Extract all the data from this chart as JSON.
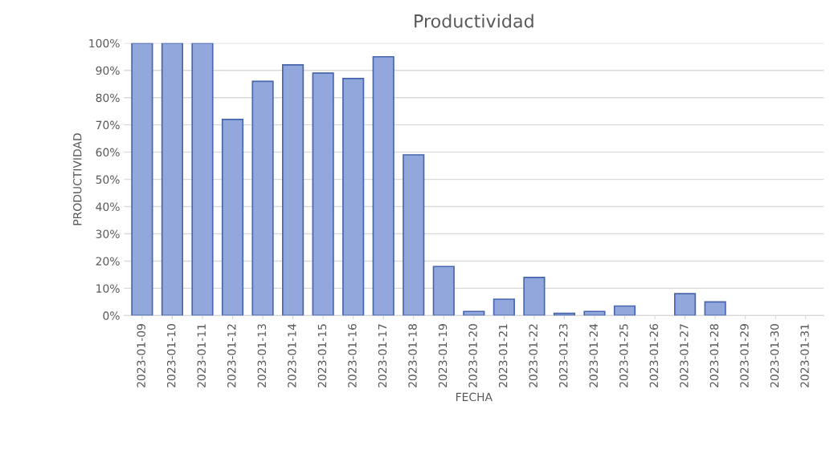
{
  "chart_data": {
    "type": "bar",
    "title": "Productividad",
    "xlabel": "FECHA",
    "ylabel": "PRODUCTIVIDAD",
    "categories": [
      "2023-01-09",
      "2023-01-10",
      "2023-01-11",
      "2023-01-12",
      "2023-01-13",
      "2023-01-14",
      "2023-01-15",
      "2023-01-16",
      "2023-01-17",
      "2023-01-18",
      "2023-01-19",
      "2023-01-20",
      "2023-01-21",
      "2023-01-22",
      "2023-01-23",
      "2023-01-24",
      "2023-01-25",
      "2023-01-26",
      "2023-01-27",
      "2023-01-28",
      "2023-01-29",
      "2023-01-30",
      "2023-01-31"
    ],
    "values": [
      100,
      100,
      100,
      72,
      86,
      92,
      89,
      87,
      95,
      59,
      18,
      1.5,
      6,
      14,
      0.8,
      1.5,
      3.5,
      null,
      8,
      5,
      null,
      null,
      null
    ],
    "color": "#92a7dc",
    "ylim": [
      0,
      100
    ],
    "yticks": [
      {
        "value": 0,
        "label": "0%"
      },
      {
        "value": 10,
        "label": "10%"
      },
      {
        "value": 20,
        "label": "20%"
      },
      {
        "value": 30,
        "label": "30%"
      },
      {
        "value": 40,
        "label": "40%"
      },
      {
        "value": 50,
        "label": "50%"
      },
      {
        "value": 60,
        "label": "60%"
      },
      {
        "value": 70,
        "label": "70%"
      },
      {
        "value": 80,
        "label": "80%"
      },
      {
        "value": 90,
        "label": "90%"
      },
      {
        "value": 100,
        "label": "100%"
      }
    ],
    "grid": "y",
    "legend": false
  }
}
